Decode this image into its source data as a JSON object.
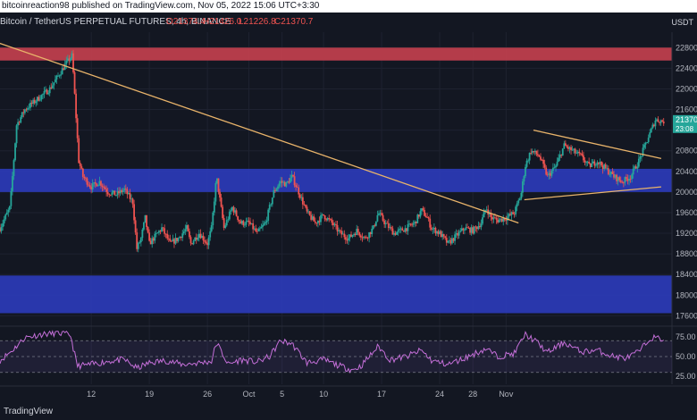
{
  "publisher_text": "bitcoinreaction98 published on TradingView.com, Nov 05, 2022 15:06 UTC+3:30",
  "header": {
    "symbol_title": "Bitcoin / TetherUS PERPETUAL FUTURES, 4h, BINANCE",
    "open": "O21374.4",
    "high": "H21426.0",
    "low": "L21226.8",
    "close": "C21370.7"
  },
  "footer_brand": "TradingView",
  "colors": {
    "background": "#131722",
    "up_candle": "#26a69a",
    "down_candle": "#ef5350",
    "resistance_zone": "#c2404e",
    "support_zone": "#2b3bb8",
    "trendline": "#e8b36a",
    "rsi_line": "#c46fd8",
    "price_tag": "#26a69a"
  },
  "chart_data": [
    {
      "type": "candlestick",
      "title": "",
      "currency": "USDT",
      "y_axis_ticks": [
        22800,
        22400,
        22000,
        21600,
        21200,
        20800,
        20400,
        20000,
        19600,
        19200,
        18800,
        18400,
        18000,
        17600
      ],
      "ylim": [
        17450,
        23100
      ],
      "x_axis_labels": [
        "12",
        "19",
        "26",
        "Oct",
        "5",
        "10",
        "17",
        "24",
        "28",
        "Nov"
      ],
      "x_axis_label_days": [
        -19,
        -12,
        -5,
        0,
        4,
        9,
        16,
        23,
        27,
        31
      ],
      "xlim_days": [
        -30,
        36
      ],
      "last_price_tag": {
        "price": 21370,
        "text": "21370.7",
        "countdown": "23:08"
      },
      "close_path": [
        {
          "day": -30,
          "price": 19300
        },
        {
          "day": -28.8,
          "price": 19700
        },
        {
          "day": -28,
          "price": 21300
        },
        {
          "day": -27,
          "price": 21600
        },
        {
          "day": -25.5,
          "price": 21800
        },
        {
          "day": -24,
          "price": 22000
        },
        {
          "day": -23,
          "price": 22250
        },
        {
          "day": -22,
          "price": 22500
        },
        {
          "day": -21.3,
          "price": 22650
        },
        {
          "day": -20.5,
          "price": 20600
        },
        {
          "day": -20,
          "price": 20300
        },
        {
          "day": -19,
          "price": 20100
        },
        {
          "day": -18,
          "price": 20200
        },
        {
          "day": -17,
          "price": 20000
        },
        {
          "day": -16,
          "price": 19950
        },
        {
          "day": -15,
          "price": 20050
        },
        {
          "day": -14,
          "price": 19800
        },
        {
          "day": -13.5,
          "price": 18900
        },
        {
          "day": -13,
          "price": 19100
        },
        {
          "day": -12.5,
          "price": 19500
        },
        {
          "day": -12,
          "price": 19000
        },
        {
          "day": -10.5,
          "price": 19300
        },
        {
          "day": -9.5,
          "price": 19000
        },
        {
          "day": -8.5,
          "price": 19100
        },
        {
          "day": -7.5,
          "price": 19300
        },
        {
          "day": -7,
          "price": 19000
        },
        {
          "day": -6,
          "price": 19200
        },
        {
          "day": -5,
          "price": 19000
        },
        {
          "day": -4.5,
          "price": 19300
        },
        {
          "day": -3.9,
          "price": 20300
        },
        {
          "day": -3,
          "price": 19300
        },
        {
          "day": -2,
          "price": 19700
        },
        {
          "day": -1,
          "price": 19400
        },
        {
          "day": 0,
          "price": 19400
        },
        {
          "day": 1,
          "price": 19200
        },
        {
          "day": 2,
          "price": 19400
        },
        {
          "day": 3,
          "price": 20000
        },
        {
          "day": 3.8,
          "price": 20200
        },
        {
          "day": 4.5,
          "price": 20150
        },
        {
          "day": 5.2,
          "price": 20300
        },
        {
          "day": 6,
          "price": 20000
        },
        {
          "day": 7,
          "price": 19600
        },
        {
          "day": 8,
          "price": 19400
        },
        {
          "day": 9,
          "price": 19550
        },
        {
          "day": 10,
          "price": 19400
        },
        {
          "day": 11,
          "price": 19200
        },
        {
          "day": 12,
          "price": 19100
        },
        {
          "day": 13,
          "price": 19250
        },
        {
          "day": 14,
          "price": 19100
        },
        {
          "day": 15,
          "price": 19300
        },
        {
          "day": 15.6,
          "price": 19600
        },
        {
          "day": 16.4,
          "price": 19400
        },
        {
          "day": 17.5,
          "price": 19200
        },
        {
          "day": 19,
          "price": 19300
        },
        {
          "day": 20,
          "price": 19400
        },
        {
          "day": 20.8,
          "price": 19650
        },
        {
          "day": 21.5,
          "price": 19500
        },
        {
          "day": 22,
          "price": 19300
        },
        {
          "day": 23,
          "price": 19200
        },
        {
          "day": 24,
          "price": 19000
        },
        {
          "day": 25,
          "price": 19150
        },
        {
          "day": 26,
          "price": 19300
        },
        {
          "day": 27,
          "price": 19250
        },
        {
          "day": 28,
          "price": 19400
        },
        {
          "day": 28.6,
          "price": 19700
        },
        {
          "day": 29.2,
          "price": 19500
        },
        {
          "day": 30,
          "price": 19450
        },
        {
          "day": 31,
          "price": 19500
        },
        {
          "day": 32,
          "price": 19600
        },
        {
          "day": 32.8,
          "price": 19950
        },
        {
          "day": 33.3,
          "price": 20500
        },
        {
          "day": 34,
          "price": 20800
        },
        {
          "day": 35,
          "price": 20700
        },
        {
          "day": 36,
          "price": 20300
        },
        {
          "day": 37,
          "price": 20500
        },
        {
          "day": 38,
          "price": 20900
        },
        {
          "day": 39,
          "price": 20800
        },
        {
          "day": 40,
          "price": 20700
        },
        {
          "day": 41,
          "price": 20500
        },
        {
          "day": 42,
          "price": 20600
        },
        {
          "day": 43,
          "price": 20450
        },
        {
          "day": 44,
          "price": 20300
        },
        {
          "day": 45,
          "price": 20200
        },
        {
          "day": 46,
          "price": 20300
        },
        {
          "day": 47,
          "price": 20600
        },
        {
          "day": 48,
          "price": 21000
        },
        {
          "day": 49,
          "price": 21400
        },
        {
          "day": 50,
          "price": 21370
        }
      ],
      "zones": [
        {
          "name": "resistance",
          "from": 22550,
          "to": 22800
        },
        {
          "name": "support-upper",
          "from": 20000,
          "to": 20450
        },
        {
          "name": "support-lower",
          "from": 17650,
          "to": 18380
        }
      ],
      "trendlines": [
        {
          "from": {
            "day": -33,
            "price": 23050
          },
          "to": {
            "day": 32.5,
            "price": 19400
          }
        },
        {
          "from": {
            "day": 34.3,
            "price": 21200
          },
          "to": {
            "day": 49.7,
            "price": 20650
          }
        },
        {
          "from": {
            "day": 33.2,
            "price": 19850
          },
          "to": {
            "day": 49.7,
            "price": 20100
          }
        }
      ]
    },
    {
      "type": "line",
      "title": "",
      "y_axis_ticks": [
        75,
        50,
        25
      ],
      "y_axis_tick_labels": [
        "75.00",
        "50.00",
        "25.00"
      ],
      "ylim": [
        15,
        85
      ],
      "levels": [
        70,
        50,
        30
      ],
      "rsi_path": [
        {
          "day": -30,
          "value": 45
        },
        {
          "day": -28.5,
          "value": 58
        },
        {
          "day": -27,
          "value": 74
        },
        {
          "day": -25,
          "value": 78
        },
        {
          "day": -23,
          "value": 80
        },
        {
          "day": -21.5,
          "value": 77
        },
        {
          "day": -20.7,
          "value": 38
        },
        {
          "day": -19,
          "value": 40
        },
        {
          "day": -17,
          "value": 44
        },
        {
          "day": -15,
          "value": 46
        },
        {
          "day": -13.5,
          "value": 35
        },
        {
          "day": -12,
          "value": 42
        },
        {
          "day": -10,
          "value": 45
        },
        {
          "day": -8,
          "value": 40
        },
        {
          "day": -6,
          "value": 42
        },
        {
          "day": -4.5,
          "value": 44
        },
        {
          "day": -3.9,
          "value": 68
        },
        {
          "day": -2.5,
          "value": 40
        },
        {
          "day": -1,
          "value": 46
        },
        {
          "day": 1,
          "value": 43
        },
        {
          "day": 2.5,
          "value": 50
        },
        {
          "day": 3.8,
          "value": 70
        },
        {
          "day": 5.2,
          "value": 66
        },
        {
          "day": 7,
          "value": 42
        },
        {
          "day": 9,
          "value": 46
        },
        {
          "day": 11,
          "value": 38
        },
        {
          "day": 12.5,
          "value": 33
        },
        {
          "day": 13.5,
          "value": 38
        },
        {
          "day": 15.6,
          "value": 63
        },
        {
          "day": 17,
          "value": 46
        },
        {
          "day": 19,
          "value": 50
        },
        {
          "day": 20.8,
          "value": 58
        },
        {
          "day": 22,
          "value": 45
        },
        {
          "day": 24,
          "value": 40
        },
        {
          "day": 26,
          "value": 48
        },
        {
          "day": 28.6,
          "value": 60
        },
        {
          "day": 30,
          "value": 50
        },
        {
          "day": 32,
          "value": 54
        },
        {
          "day": 33.3,
          "value": 78
        },
        {
          "day": 34.5,
          "value": 70
        },
        {
          "day": 36,
          "value": 55
        },
        {
          "day": 38,
          "value": 68
        },
        {
          "day": 40,
          "value": 56
        },
        {
          "day": 42,
          "value": 58
        },
        {
          "day": 44,
          "value": 50
        },
        {
          "day": 45.5,
          "value": 48
        },
        {
          "day": 47,
          "value": 56
        },
        {
          "day": 48.5,
          "value": 74
        },
        {
          "day": 50,
          "value": 72
        }
      ]
    }
  ]
}
